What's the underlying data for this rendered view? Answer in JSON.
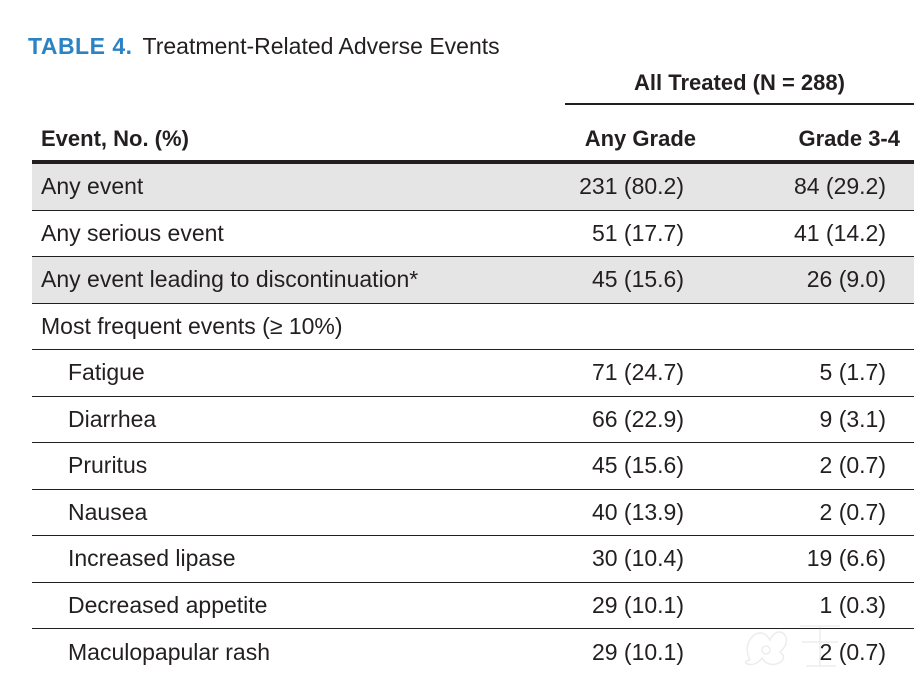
{
  "caption": {
    "label": "TABLE 4.",
    "title": "Treatment-Related Adverse Events"
  },
  "table": {
    "spanning_header": "All Treated (N = 288)",
    "headers": {
      "event": "Event, No. (%)",
      "any_grade": "Any Grade",
      "grade_3_4": "Grade 3-4"
    },
    "rows": [
      {
        "event": "Any event",
        "any_grade": "231 (80.2)",
        "grade_3_4": "84 (29.2)"
      },
      {
        "event": "Any serious event",
        "any_grade": "51 (17.7)",
        "grade_3_4": "41 (14.2)"
      },
      {
        "event": "Any event leading to discontinuation*",
        "any_grade": "45 (15.6)",
        "grade_3_4": "26 (9.0)"
      },
      {
        "event": "Most frequent events (≥ 10%)",
        "any_grade": "",
        "grade_3_4": ""
      },
      {
        "event": "Fatigue",
        "any_grade": "71 (24.7)",
        "grade_3_4": "5 (1.7)"
      },
      {
        "event": "Diarrhea",
        "any_grade": "66 (22.9)",
        "grade_3_4": "9 (3.1)"
      },
      {
        "event": "Pruritus",
        "any_grade": "45 (15.6)",
        "grade_3_4": "2 (0.7)"
      },
      {
        "event": "Nausea",
        "any_grade": "40 (13.9)",
        "grade_3_4": "2 (0.7)"
      },
      {
        "event": "Increased lipase",
        "any_grade": "30 (10.4)",
        "grade_3_4": "19 (6.6)"
      },
      {
        "event": "Decreased appetite",
        "any_grade": "29 (10.1)",
        "grade_3_4": "1 (0.3)"
      },
      {
        "event": "Maculopapular rash",
        "any_grade": "29 (10.1)",
        "grade_3_4": "2 (0.7)"
      }
    ]
  }
}
